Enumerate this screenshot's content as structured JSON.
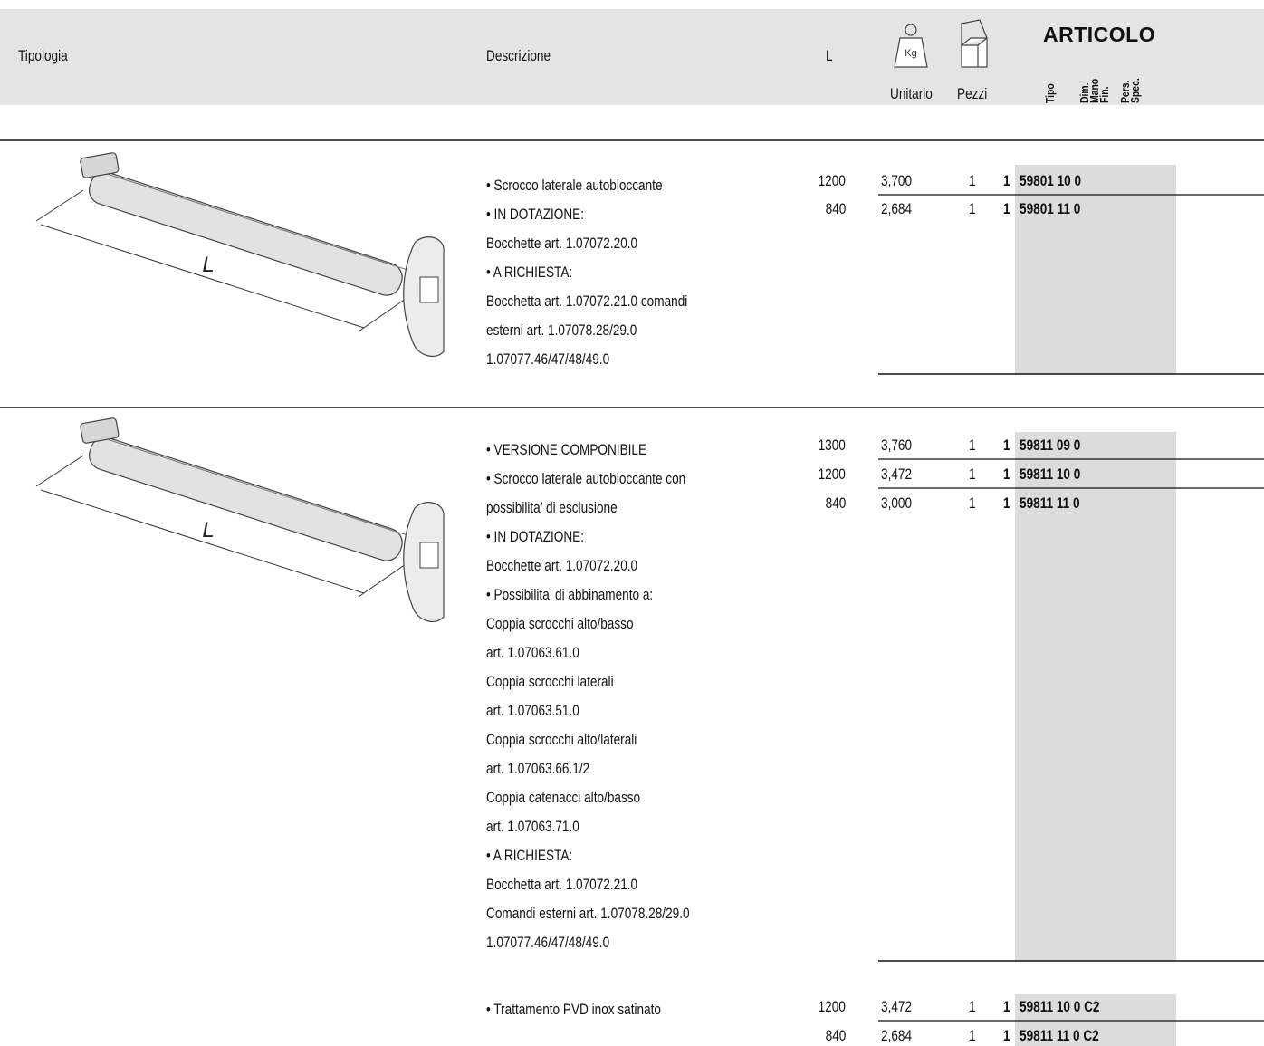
{
  "header": {
    "tipologia": "Tipologia",
    "descrizione": "Descrizione",
    "l": "L",
    "kg": "Kg",
    "unitario": "Unitario",
    "pezzi": "Pezzi",
    "articolo": "ARTICOLO",
    "subcolumns": [
      "Tipo",
      "Dim.",
      "Mano",
      "Fin.",
      "Pers.",
      "Spec."
    ]
  },
  "sections": [
    {
      "image_label": "L",
      "description": [
        "• Scrocco laterale autobloccante",
        "• IN DOTAZIONE:",
        "Bocchette art. 1.07072.20.0",
        "• A RICHIESTA:",
        "Bocchetta art. 1.07072.21.0 comandi",
        "esterni art. 1.07078.28/29.0",
        "1.07077.46/47/48/49.0"
      ],
      "rows": [
        {
          "l": "1200",
          "weight": "3,700",
          "pieces": "1",
          "tipo": "1",
          "code": "59801 10 0"
        },
        {
          "l": "840",
          "weight": "2,684",
          "pieces": "1",
          "tipo": "1",
          "code": "59801 11 0"
        }
      ]
    },
    {
      "image_label": "L",
      "description": [
        "• VERSIONE COMPONIBILE",
        "• Scrocco laterale autobloccante con",
        "possibilita’ di esclusione",
        "• IN DOTAZIONE:",
        "Bocchette art. 1.07072.20.0",
        "• Possibilita’ di abbinamento a:",
        "Coppia scrocchi alto/basso",
        "art. 1.07063.61.0",
        "Coppia scrocchi laterali",
        "art. 1.07063.51.0",
        "Coppia scrocchi alto/laterali",
        "art. 1.07063.66.1/2",
        "Coppia catenacci alto/basso",
        "art. 1.07063.71.0",
        "• A RICHIESTA:",
        "Bocchetta art. 1.07072.21.0",
        "Comandi esterni art. 1.07078.28/29.0",
        "1.07077.46/47/48/49.0"
      ],
      "rows": [
        {
          "l": "1300",
          "weight": "3,760",
          "pieces": "1",
          "tipo": "1",
          "code": "59811 09 0"
        },
        {
          "l": "1200",
          "weight": "3,472",
          "pieces": "1",
          "tipo": "1",
          "code": "59811 10 0"
        },
        {
          "l": "840",
          "weight": "3,000",
          "pieces": "1",
          "tipo": "1",
          "code": "59811 11 0"
        }
      ]
    },
    {
      "description": [
        "• Trattamento PVD inox satinato"
      ],
      "rows": [
        {
          "l": "1200",
          "weight": "3,472",
          "pieces": "1",
          "tipo": "1",
          "code": "59811 10 0 C2"
        },
        {
          "l": "840",
          "weight": "2,684",
          "pieces": "1",
          "tipo": "1",
          "code": "59811 11 0 C2"
        }
      ]
    }
  ]
}
